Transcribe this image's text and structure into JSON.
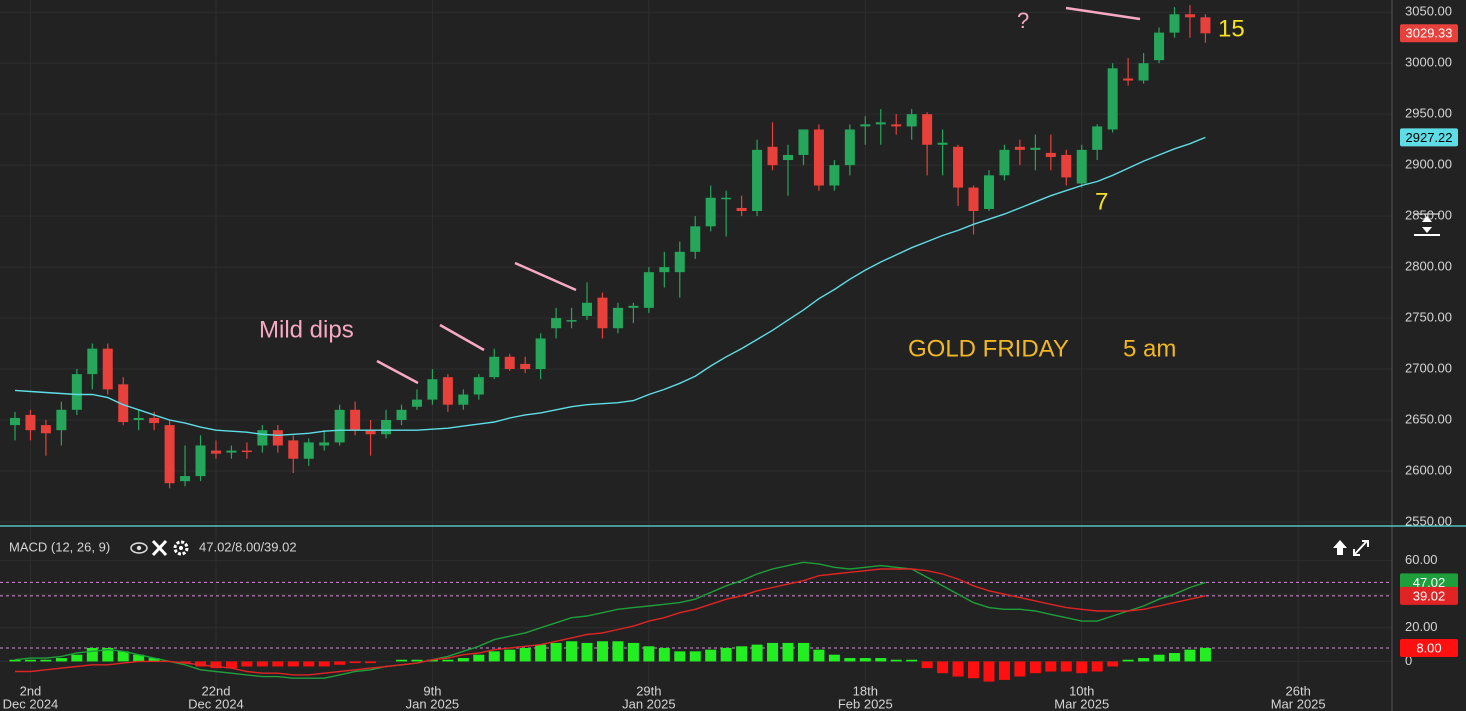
{
  "chart_data": [
    {
      "type": "candlestick",
      "categories": [
        null,
        "2nd",
        null,
        null,
        null,
        null,
        null,
        null,
        null,
        null,
        null,
        null,
        null,
        "22nd",
        null,
        null,
        null,
        null,
        null,
        null,
        null,
        null,
        null,
        null,
        null,
        null,
        null,
        "9th",
        null,
        null,
        null,
        null,
        null,
        null,
        null,
        null,
        null,
        null,
        null,
        null,
        null,
        "29th",
        null,
        null,
        null,
        null,
        null,
        null,
        null,
        null,
        null,
        null,
        null,
        null,
        null,
        "18th",
        null,
        null,
        null,
        null,
        null,
        null,
        null,
        null,
        null,
        null,
        null,
        null,
        null,
        "10th",
        null,
        null,
        null,
        null,
        null,
        null,
        null,
        null,
        null,
        null,
        null,
        null,
        null,
        "26th"
      ],
      "category_sublabels": [
        "Dec 2024",
        "Dec 2024",
        "Jan 2025",
        "Jan 2025",
        "Feb 2025",
        "Mar 2025",
        "Mar 2025"
      ],
      "open": [
        2645,
        2655,
        2645,
        2640,
        2660,
        2695,
        2720,
        2685,
        2650,
        2652,
        2645,
        2590,
        2595,
        2620,
        2618,
        2620,
        2625,
        2640,
        2630,
        2612,
        2625,
        2628,
        2660,
        2640,
        2636,
        2650,
        2663,
        2670,
        2692,
        2665,
        2675,
        2692,
        2712,
        2705,
        2700,
        2740,
        2748,
        2752,
        2770,
        2740,
        2760,
        2760,
        2795,
        2795,
        2815,
        2840,
        2868,
        2858,
        2855,
        2918,
        2905,
        2910,
        2935,
        2880,
        2900,
        2938,
        2940,
        2940,
        2938,
        2950,
        2920,
        2918,
        2878,
        2857,
        2890,
        2918,
        2915,
        2912,
        2910,
        2882,
        2915,
        2935,
        2985,
        2983,
        3003,
        3030,
        3048,
        3045,
        null,
        null,
        null,
        null,
        null,
        null
      ],
      "high": [
        2658,
        2660,
        2650,
        2668,
        2700,
        2725,
        2725,
        2692,
        2660,
        2658,
        2650,
        2625,
        2635,
        2630,
        2625,
        2628,
        2645,
        2645,
        2635,
        2632,
        2640,
        2665,
        2668,
        2650,
        2660,
        2665,
        2680,
        2700,
        2695,
        2680,
        2695,
        2720,
        2715,
        2712,
        2735,
        2760,
        2760,
        2785,
        2775,
        2765,
        2765,
        2800,
        2815,
        2825,
        2850,
        2880,
        2875,
        2870,
        2925,
        2942,
        2920,
        2935,
        2940,
        2905,
        2940,
        2948,
        2955,
        2950,
        2955,
        2952,
        2935,
        2920,
        2880,
        2895,
        2920,
        2925,
        2930,
        2930,
        2915,
        2920,
        2940,
        3000,
        3005,
        3010,
        3035,
        3055,
        3057,
        3048,
        null,
        null,
        null,
        null,
        null,
        null
      ],
      "low": [
        2630,
        2630,
        2615,
        2625,
        2655,
        2680,
        2675,
        2645,
        2640,
        2640,
        2583,
        2585,
        2590,
        2612,
        2612,
        2612,
        2618,
        2618,
        2598,
        2605,
        2620,
        2625,
        2635,
        2615,
        2632,
        2645,
        2660,
        2665,
        2658,
        2660,
        2670,
        2690,
        2698,
        2696,
        2690,
        2730,
        2740,
        2748,
        2730,
        2735,
        2745,
        2755,
        2780,
        2770,
        2808,
        2835,
        2830,
        2850,
        2850,
        2895,
        2870,
        2900,
        2875,
        2875,
        2890,
        2920,
        2920,
        2930,
        2925,
        2890,
        2890,
        2860,
        2832,
        2855,
        2885,
        2900,
        2895,
        2895,
        2880,
        2878,
        2905,
        2932,
        2978,
        2980,
        3000,
        3025,
        3025,
        3020,
        null,
        null,
        null,
        null,
        null,
        null
      ],
      "close": [
        2652,
        2640,
        2637,
        2660,
        2695,
        2720,
        2680,
        2648,
        2652,
        2647,
        2588,
        2595,
        2625,
        2617,
        2620,
        2619,
        2640,
        2625,
        2612,
        2628,
        2628,
        2660,
        2640,
        2636,
        2650,
        2660,
        2670,
        2690,
        2665,
        2675,
        2692,
        2712,
        2700,
        2700,
        2730,
        2750,
        2748,
        2765,
        2740,
        2760,
        2762,
        2795,
        2800,
        2815,
        2840,
        2868,
        2868,
        2855,
        2915,
        2900,
        2910,
        2935,
        2880,
        2900,
        2935,
        2940,
        2942,
        2938,
        2950,
        2920,
        2922,
        2878,
        2855,
        2890,
        2915,
        2915,
        2917,
        2908,
        2888,
        2915,
        2938,
        2995,
        2983,
        3000,
        3030,
        3048,
        3045,
        3029.33,
        null,
        null,
        null,
        null,
        null,
        null
      ],
      "up_color": "#26a65b",
      "down_color": "#e8403a",
      "overlays": [
        {
          "type": "line",
          "color": "#5fdde6",
          "values": [
            2679,
            2678,
            2677,
            2676,
            2675,
            2675,
            2672,
            2665,
            2660,
            2655,
            2650,
            2647,
            2643,
            2640,
            2639,
            2638,
            2636,
            2635,
            2636,
            2637,
            2639,
            2640,
            2640,
            2640,
            2640,
            2640,
            2640,
            2641,
            2642,
            2644,
            2646,
            2648,
            2652,
            2655,
            2657,
            2660,
            2663,
            2665,
            2666,
            2667,
            2669,
            2675,
            2680,
            2686,
            2693,
            2703,
            2712,
            2720,
            2729,
            2738,
            2748,
            2758,
            2769,
            2778,
            2788,
            2797,
            2805,
            2812,
            2819,
            2825,
            2831,
            2836,
            2842,
            2847,
            2852,
            2858,
            2864,
            2870,
            2875,
            2880,
            2884,
            2890,
            2897,
            2904,
            2910,
            2916,
            2921,
            2927.22,
            null,
            null,
            null,
            null,
            null,
            null
          ]
        }
      ],
      "ylim": [
        2547,
        3062
      ],
      "yticks": [
        {
          "value": 2550,
          "label": "2550.00"
        },
        {
          "value": 2600,
          "label": "2600.00"
        },
        {
          "value": 2650,
          "label": "2650.00"
        },
        {
          "value": 2700,
          "label": "2700.00"
        },
        {
          "value": 2750,
          "label": "2750.00"
        },
        {
          "value": 2800,
          "label": "2800.00"
        },
        {
          "value": 2850,
          "label": "2850.00"
        },
        {
          "value": 2900,
          "label": "2900.00"
        },
        {
          "value": 2950,
          "label": "2950.00"
        },
        {
          "value": 3000,
          "label": "3000.00"
        },
        {
          "value": 3050,
          "label": "3050.00"
        }
      ],
      "grid": true,
      "annotations": [
        "Mild dips",
        "?",
        "GOLD FRIDAY",
        "5 am",
        "15",
        "7"
      ]
    },
    {
      "type": "macd",
      "title": "MACD (12, 26, 9)",
      "legend_values": "47.02/8.00/39.02",
      "series": [
        {
          "color": "#1f9e3c",
          "values": [
            1,
            2,
            2,
            3,
            5,
            6,
            7,
            6,
            4,
            2,
            0,
            -2,
            -5,
            -6,
            -7,
            -8,
            -9,
            -9,
            -10,
            -10,
            -10,
            -8,
            -6,
            -5,
            -3,
            -2,
            -1,
            1,
            3,
            6,
            9,
            13,
            15,
            17,
            20,
            23,
            26,
            27,
            29,
            31,
            32,
            33,
            34,
            35,
            37,
            41,
            45,
            48,
            52,
            55,
            57,
            59,
            58,
            56,
            55,
            56,
            57,
            56,
            55,
            50,
            45,
            40,
            35,
            32,
            31,
            31,
            30,
            28,
            26,
            24,
            24,
            27,
            30,
            33,
            37,
            40,
            44,
            47.02,
            null,
            null,
            null,
            null,
            null,
            null
          ]
        },
        {
          "color": "#e02424",
          "values": [
            -6,
            -6,
            -5,
            -4,
            -3,
            -2,
            -2,
            -1,
            0,
            0,
            0,
            -1,
            -2,
            -3,
            -4,
            -6,
            -7,
            -7,
            -8,
            -8,
            -7,
            -6,
            -5,
            -4,
            -3,
            -2,
            -1,
            1,
            2,
            4,
            5,
            7,
            8,
            9,
            10,
            12,
            14,
            16,
            17,
            19,
            21,
            24,
            26,
            29,
            31,
            34,
            37,
            39,
            42,
            44,
            46,
            48,
            51,
            52,
            53,
            54,
            55,
            55,
            55,
            54,
            52,
            49,
            45,
            42,
            40,
            38,
            36,
            34,
            32,
            31,
            30,
            30,
            30,
            31,
            33,
            35,
            37,
            39.02,
            null,
            null,
            null,
            null,
            null,
            null
          ]
        }
      ],
      "histogram": {
        "up_color": "#22ee22",
        "down_color": "#ff1010",
        "values": [
          1,
          1,
          1,
          2,
          4,
          8,
          8,
          6,
          4,
          2,
          0,
          -1,
          -3,
          -4,
          -4,
          -3,
          -3,
          -3,
          -3,
          -3,
          -3,
          -2,
          -1,
          -1,
          0,
          1,
          1,
          1,
          1,
          2,
          4,
          6,
          7,
          8,
          10,
          11,
          12,
          11,
          12,
          12,
          11,
          9,
          8,
          6,
          6,
          7,
          8,
          9,
          10,
          11,
          11,
          11,
          7,
          4,
          2,
          2,
          2,
          1,
          1,
          -4,
          -7,
          -9,
          -10,
          -12,
          -11,
          -9,
          -7,
          -6,
          -6,
          -7,
          -6,
          -3,
          1,
          2,
          4,
          5,
          7,
          8,
          null,
          null,
          null,
          null,
          null,
          null
        ]
      },
      "histogram_badge": {
        "value": 8,
        "label": "8.00"
      },
      "ylim": [
        -17,
        77
      ],
      "yticks": [
        0,
        {
          "value": 20,
          "label": "20.00"
        },
        {
          "value": 40,
          "label": "40.00"
        },
        {
          "value": 60,
          "label": "60.00"
        }
      ],
      "grid": true
    }
  ]
}
